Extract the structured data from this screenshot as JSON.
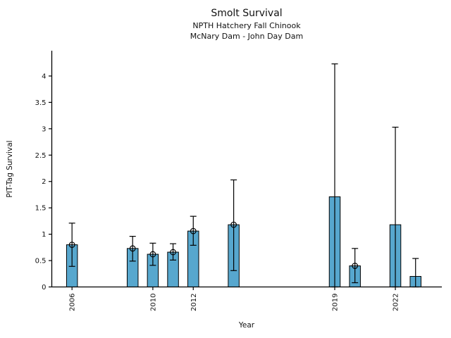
{
  "chart_data": {
    "type": "bar",
    "title": "Smolt Survival",
    "subtitle": [
      "NPTH Hatchery Fall Chinook",
      "McNary Dam - John Day Dam"
    ],
    "xlabel": "Year",
    "ylabel": "PIT-Tag Survival",
    "xlim": [
      2005,
      2024.3
    ],
    "ylim": [
      0,
      4.48
    ],
    "grid": false,
    "legend": null,
    "yticks": [
      0,
      0.5,
      1,
      1.5,
      2,
      2.5,
      3,
      3.5,
      4
    ],
    "ytick_labels": [
      "0",
      "0.5",
      "1",
      "1.5",
      "2",
      "2.5",
      "3",
      "3.5",
      "4"
    ],
    "xticks": [
      2006,
      2010,
      2012,
      2019,
      2022
    ],
    "xtick_labels": [
      "2006",
      "2010",
      "2012",
      "2019",
      "2022"
    ],
    "bar_width_years": 0.54,
    "series": [
      {
        "name": "PIT-Tag Survival",
        "points": [
          {
            "year": 2006,
            "value": 0.8,
            "ci_low": 0.39,
            "ci_high": 1.21,
            "marker": true
          },
          {
            "year": 2009,
            "value": 0.73,
            "ci_low": 0.49,
            "ci_high": 0.96,
            "marker": true
          },
          {
            "year": 2010,
            "value": 0.62,
            "ci_low": 0.41,
            "ci_high": 0.83,
            "marker": true
          },
          {
            "year": 2011,
            "value": 0.66,
            "ci_low": 0.51,
            "ci_high": 0.82,
            "marker": true
          },
          {
            "year": 2012,
            "value": 1.06,
            "ci_low": 0.79,
            "ci_high": 1.34,
            "marker": true
          },
          {
            "year": 2014,
            "value": 1.18,
            "ci_low": 0.31,
            "ci_high": 2.03,
            "marker": true
          },
          {
            "year": 2019,
            "value": 1.71,
            "ci_low": 0.0,
            "ci_high": 4.23,
            "marker": false
          },
          {
            "year": 2020,
            "value": 0.4,
            "ci_low": 0.08,
            "ci_high": 0.73,
            "marker": true
          },
          {
            "year": 2022,
            "value": 1.18,
            "ci_low": 0.0,
            "ci_high": 3.03,
            "marker": false
          },
          {
            "year": 2023,
            "value": 0.2,
            "ci_low": 0.0,
            "ci_high": 0.54,
            "marker": false
          }
        ]
      }
    ]
  },
  "colors": {
    "bar_fill": "#57A7CE",
    "bar_edge": "#000000",
    "axis": "#000000",
    "error": "#000000",
    "background": "#FFFFFF"
  }
}
